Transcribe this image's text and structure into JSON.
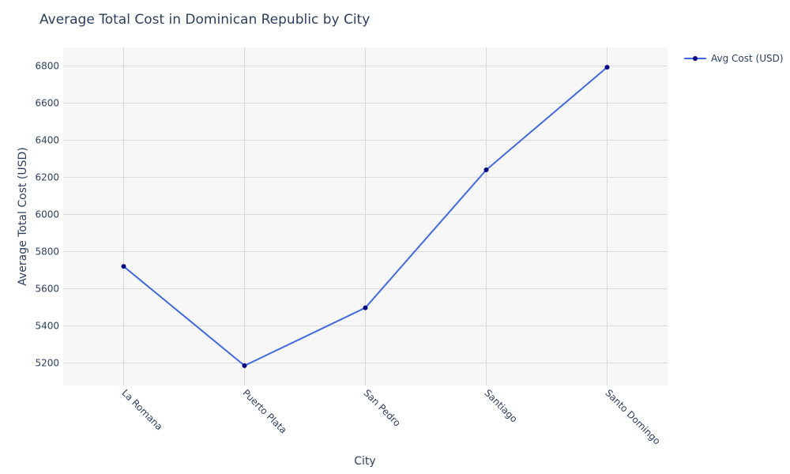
{
  "chart_data": {
    "type": "line",
    "title": "Average Total Cost in Dominican Republic by City",
    "xlabel": "City",
    "ylabel": "Average Total Cost (USD)",
    "categories": [
      "La Romana",
      "Puerto Plata",
      "San Pedro",
      "Santiago",
      "Santo Domingo"
    ],
    "series": [
      {
        "name": "Avg Cost (USD)",
        "values": [
          5720,
          5185,
          5497,
          6240,
          6793
        ]
      }
    ],
    "ylim": [
      5078,
      6900
    ],
    "yticks": [
      5200,
      5400,
      5600,
      5800,
      6000,
      6200,
      6400,
      6600,
      6800
    ],
    "grid": true,
    "legend_position": "top-right",
    "colors": {
      "line": "#4169e1",
      "marker": "#000080",
      "plot_bg": "#f7f7f7",
      "grid": "#d9d9d9",
      "text": "#2a3f5f"
    }
  }
}
